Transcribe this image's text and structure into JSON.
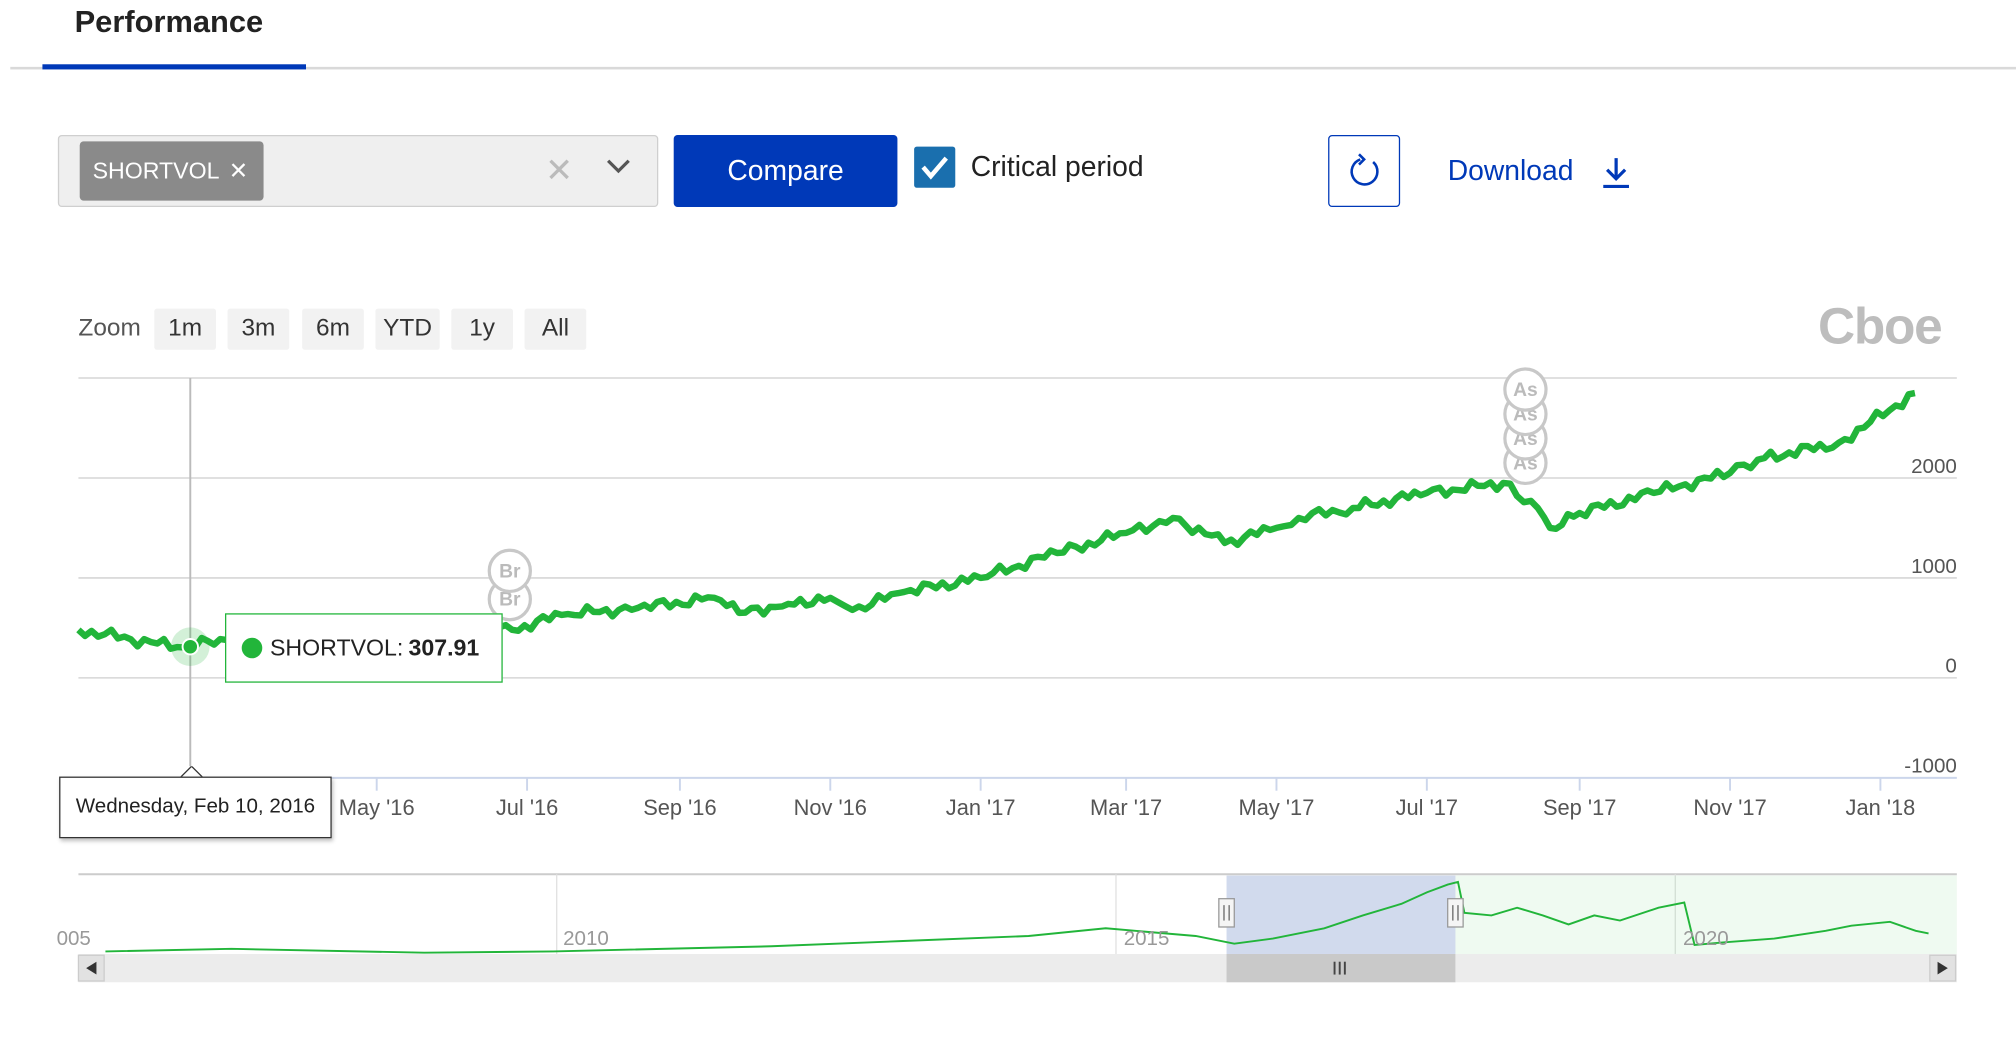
{
  "header": {
    "tab_title": "Performance"
  },
  "toolbar": {
    "symbol_chip": "SHORTVOL",
    "compare_label": "Compare",
    "critical_period_label": "Critical period",
    "critical_period_checked": true,
    "download_label": "Download"
  },
  "zoom": {
    "label": "Zoom",
    "buttons": [
      "1m",
      "3m",
      "6m",
      "YTD",
      "1y",
      "All"
    ]
  },
  "logo_text": "Cboe",
  "tooltip": {
    "series": "SHORTVOL",
    "value": "307.91",
    "date": "Wednesday, Feb 10, 2016"
  },
  "colors": {
    "series": "#22b53a",
    "brand": "#0039b8"
  },
  "chart_data": {
    "type": "line",
    "x_ticks": [
      "May '16",
      "Jul '16",
      "Sep '16",
      "Nov '16",
      "Jan '17",
      "Mar '17",
      "May '17",
      "Jul '17",
      "Sep '17",
      "Nov '17",
      "Jan '18"
    ],
    "y_ticks": [
      "2000",
      "1000",
      "0",
      "-1000"
    ],
    "ylim": [
      -1000,
      3000
    ],
    "y_axis_side": "right",
    "grid": true,
    "series": [
      {
        "x": [
          "2016-01-01",
          "2016-02-10",
          "2016-03-01",
          "2016-04-01",
          "2016-05-01",
          "2016-06-01",
          "2016-06-25",
          "2016-07-15",
          "2016-08-15",
          "2016-09-15",
          "2016-09-25",
          "2016-10-15",
          "2016-11-01",
          "2016-11-10",
          "2016-12-01",
          "2017-01-01",
          "2017-02-01",
          "2017-03-01",
          "2017-03-20",
          "2017-04-10",
          "2017-05-01",
          "2017-05-10",
          "2017-06-01",
          "2017-07-01",
          "2017-08-01",
          "2017-08-15",
          "2017-08-20",
          "2017-09-01",
          "2017-10-01",
          "2017-11-01",
          "2017-11-15",
          "2017-12-15",
          "2018-01-15"
        ],
        "y": [
          480,
          307.91,
          380,
          420,
          470,
          520,
          480,
          630,
          700,
          800,
          650,
          740,
          800,
          680,
          860,
          1000,
          1250,
          1450,
          1600,
          1350,
          1500,
          1600,
          1700,
          1850,
          1950,
          1700,
          1500,
          1650,
          1850,
          2050,
          2200,
          2350,
          2850
        ]
      }
    ],
    "event_flags": [
      {
        "label": "Br",
        "date": "2016-06-24"
      },
      {
        "label": "As",
        "date": "2017-08-10"
      }
    ],
    "navigator": {
      "x_labels": [
        "005",
        "2010",
        "2015",
        "2020"
      ],
      "selected_range": [
        "2016-01-01",
        "2018-01-31"
      ]
    }
  }
}
